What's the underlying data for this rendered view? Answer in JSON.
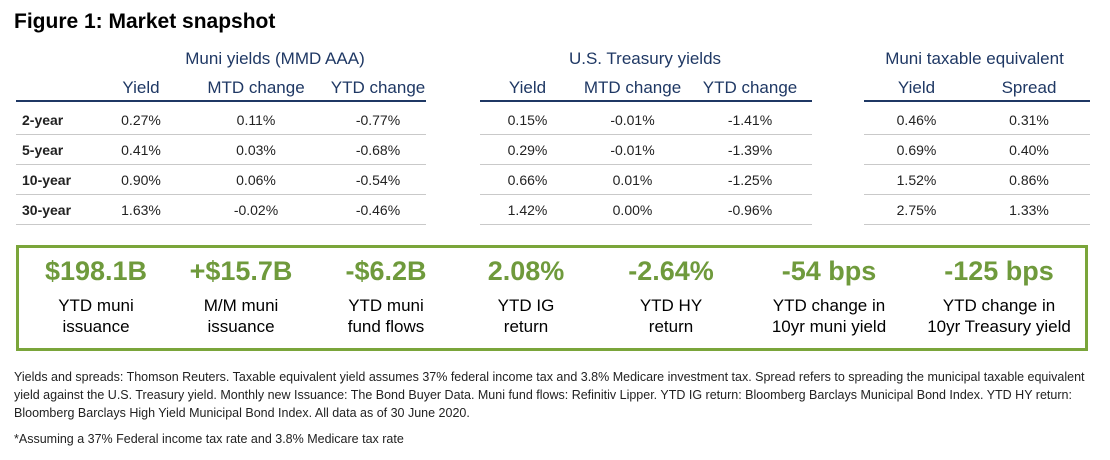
{
  "title": "Figure 1: Market snapshot",
  "groups": [
    {
      "title": "Muni yields (MMD AAA)",
      "columns": [
        "Yield",
        "MTD change",
        "YTD change"
      ]
    },
    {
      "title": "U.S. Treasury yields",
      "columns": [
        "Yield",
        "MTD change",
        "YTD change"
      ]
    },
    {
      "title": "Muni taxable equivalent",
      "columns": [
        "Yield",
        "Spread"
      ]
    }
  ],
  "rows": [
    {
      "label": "2-year",
      "muni": [
        "0.27%",
        "0.11%",
        "-0.77%"
      ],
      "treasury": [
        "0.15%",
        "-0.01%",
        "-1.41%"
      ],
      "taxable": [
        "0.46%",
        "0.31%"
      ]
    },
    {
      "label": "5-year",
      "muni": [
        "0.41%",
        "0.03%",
        "-0.68%"
      ],
      "treasury": [
        "0.29%",
        "-0.01%",
        "-1.39%"
      ],
      "taxable": [
        "0.69%",
        "0.40%"
      ]
    },
    {
      "label": "10-year",
      "muni": [
        "0.90%",
        "0.06%",
        "-0.54%"
      ],
      "treasury": [
        "0.66%",
        "0.01%",
        "-1.25%"
      ],
      "taxable": [
        "1.52%",
        "0.86%"
      ]
    },
    {
      "label": "30-year",
      "muni": [
        "1.63%",
        "-0.02%",
        "-0.46%"
      ],
      "treasury": [
        "1.42%",
        "0.00%",
        "-0.96%"
      ],
      "taxable": [
        "2.75%",
        "1.33%"
      ]
    }
  ],
  "stats": [
    {
      "value": "$198.1B",
      "label1": "YTD muni",
      "label2": "issuance"
    },
    {
      "value": "+$15.7B",
      "label1": "M/M muni",
      "label2": "issuance"
    },
    {
      "value": "-$6.2B",
      "label1": "YTD muni",
      "label2": "fund flows"
    },
    {
      "value": "2.08%",
      "label1": "YTD IG",
      "label2": "return"
    },
    {
      "value": "-2.64%",
      "label1": "YTD HY",
      "label2": "return"
    },
    {
      "value": "-54 bps",
      "label1": "YTD change in",
      "label2": "10yr muni yield"
    },
    {
      "value": "-125 bps",
      "label1": "YTD change in",
      "label2": "10yr Treasury yield"
    }
  ],
  "colors": {
    "navy": "#1f3864",
    "green": "#6f9a3c",
    "border_green": "#7aa53a"
  },
  "notes": {
    "sources": "Yields and spreads: Thomson Reuters. Taxable equivalent yield assumes 37% federal income tax and 3.8% Medicare investment tax. Spread refers to spreading the municipal taxable equivalent yield against the U.S. Treasury yield. Monthly new Issuance: The Bond Buyer Data. Muni fund flows: Refinitiv Lipper. YTD IG return: Bloomberg Barclays Municipal Bond Index. YTD HY return: Bloomberg Barclays High Yield Municipal Bond Index. All data as of 30 June 2020.",
    "footnote": "*Assuming a 37% Federal income tax rate and 3.8% Medicare tax rate"
  }
}
